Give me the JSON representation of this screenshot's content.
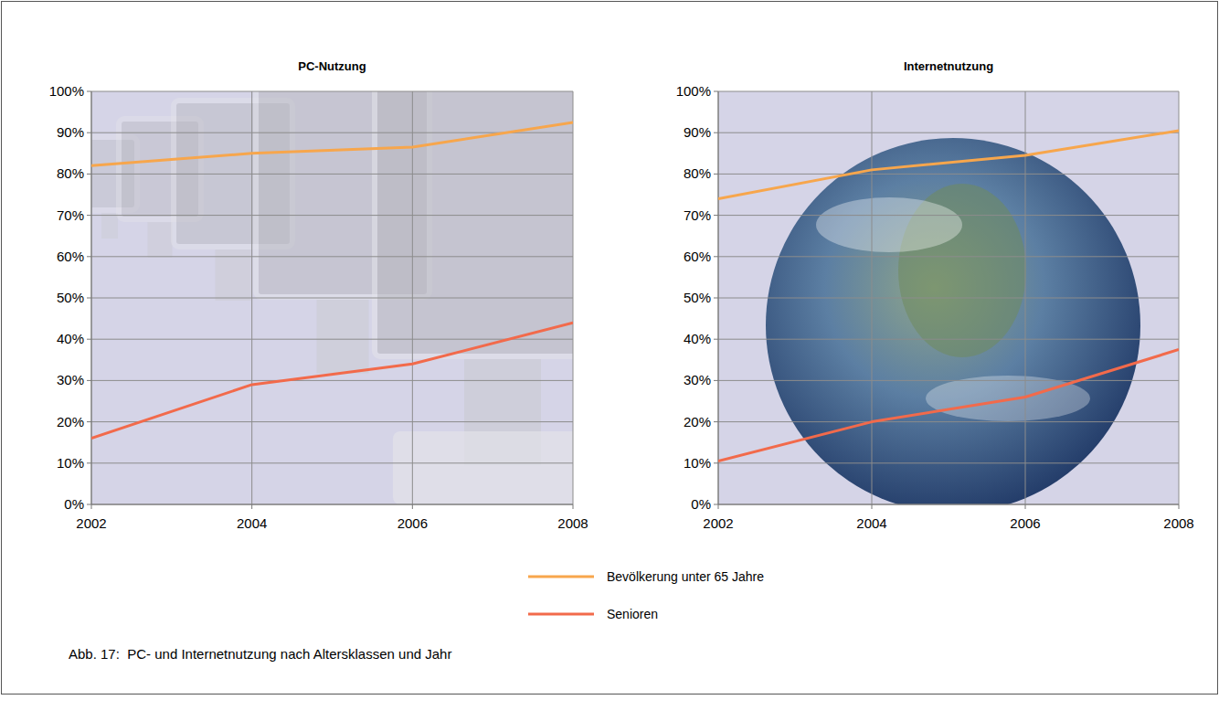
{
  "chart_data": [
    {
      "type": "line",
      "title": "PC-Nutzung",
      "x": [
        2002,
        2004,
        2006,
        2008
      ],
      "xlim": [
        2002,
        2008
      ],
      "xticks": [
        2002,
        2004,
        2006,
        2008
      ],
      "ylim": [
        0,
        100
      ],
      "yticks": [
        {
          "value": 0,
          "label": "0%"
        },
        {
          "value": 10,
          "label": "10%"
        },
        {
          "value": 20,
          "label": "20%"
        },
        {
          "value": 30,
          "label": "30%"
        },
        {
          "value": 40,
          "label": "40%"
        },
        {
          "value": 50,
          "label": "50%"
        },
        {
          "value": 60,
          "label": "60%"
        },
        {
          "value": 70,
          "label": "70%"
        },
        {
          "value": 80,
          "label": "80%"
        },
        {
          "value": 90,
          "label": "90%"
        },
        {
          "value": 100,
          "label": "100%"
        }
      ],
      "grid": true,
      "legend": "bottom",
      "series": [
        {
          "name": "Bevölkerung unter 65 Jahre",
          "color": "#f7a64c",
          "values": [
            82,
            85,
            86.5,
            92.5
          ]
        },
        {
          "name": "Senioren",
          "color": "#f26a4b",
          "values": [
            16,
            29,
            34,
            44
          ]
        }
      ]
    },
    {
      "type": "line",
      "title": "Internetnutzung",
      "x": [
        2002,
        2004,
        2006,
        2008
      ],
      "xlim": [
        2002,
        2008
      ],
      "xticks": [
        2002,
        2004,
        2006,
        2008
      ],
      "ylim": [
        0,
        100
      ],
      "yticks": [
        {
          "value": 0,
          "label": "0%"
        },
        {
          "value": 10,
          "label": "10%"
        },
        {
          "value": 20,
          "label": "20%"
        },
        {
          "value": 30,
          "label": "30%"
        },
        {
          "value": 40,
          "label": "40%"
        },
        {
          "value": 50,
          "label": "50%"
        },
        {
          "value": 60,
          "label": "60%"
        },
        {
          "value": 70,
          "label": "70%"
        },
        {
          "value": 80,
          "label": "80%"
        },
        {
          "value": 90,
          "label": "90%"
        },
        {
          "value": 100,
          "label": "100%"
        }
      ],
      "grid": true,
      "series": [
        {
          "name": "Bevölkerung unter 65 Jahre",
          "color": "#f7a64c",
          "values": [
            74,
            81,
            84.5,
            90.5
          ]
        },
        {
          "name": "Senioren",
          "color": "#f26a4b",
          "values": [
            10.5,
            20,
            26,
            37.5
          ]
        }
      ]
    }
  ],
  "caption": "Abb. 17:  PC- und Internetnutzung nach Altersklassen und Jahr"
}
